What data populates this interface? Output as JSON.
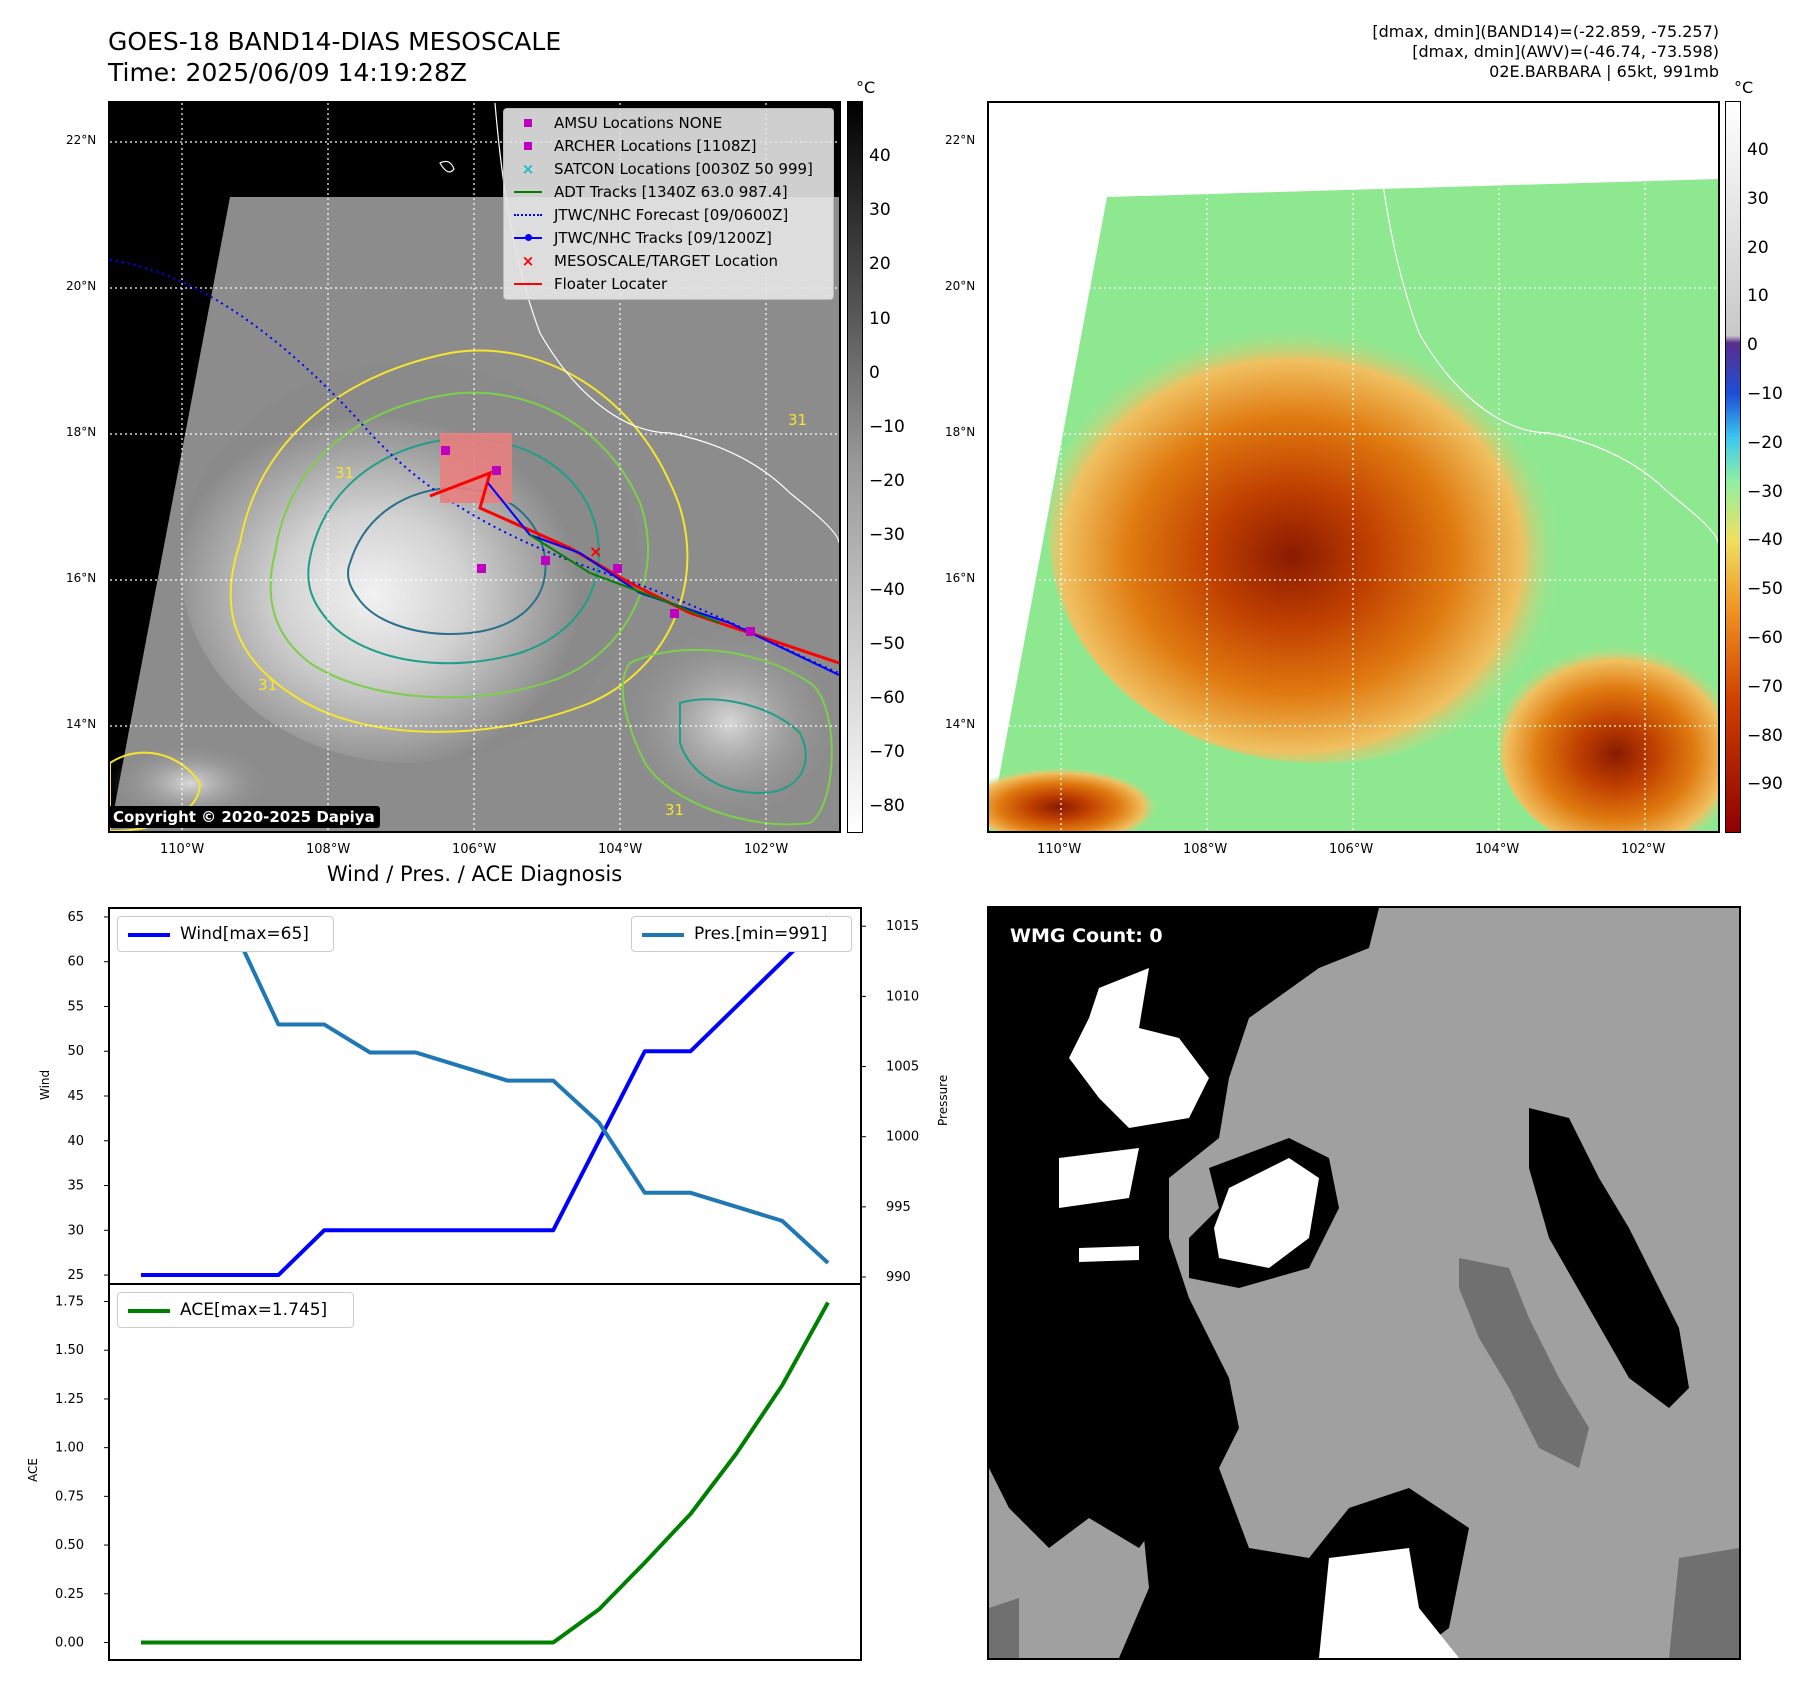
{
  "header": {
    "title_line1": "GOES-18 BAND14-DIAS MESOSCALE",
    "title_line2": "Time: 2025/06/09 14:19:28Z",
    "info_line1": "[dmax, dmin](BAND14)=(-22.859, -75.257)",
    "info_line2": "[dmax, dmin](AWV)=(-46.74, -73.598)",
    "info_line3": "02E.BARBARA | 65kt, 991mb"
  },
  "maps": {
    "lat_labels": [
      "22°N",
      "20°N",
      "18°N",
      "16°N",
      "14°N"
    ],
    "lon_labels": [
      "110°W",
      "108°W",
      "106°W",
      "104°W",
      "102°W"
    ],
    "unit": "°C",
    "colorbar_left_ticks": [
      "40",
      "30",
      "20",
      "10",
      "0",
      "−10",
      "−20",
      "−30",
      "−40",
      "−50",
      "−60",
      "−70",
      "−80"
    ],
    "colorbar_right_ticks": [
      "40",
      "30",
      "20",
      "10",
      "0",
      "−10",
      "−20",
      "−30",
      "−40",
      "−50",
      "−60",
      "−70",
      "−80",
      "−90"
    ],
    "contour_label": "31",
    "copyright": "Copyright © 2020-2025 Dapiya",
    "colors": {
      "contour_yellow": "#f5e52c",
      "contour_green": "#7dcf4a",
      "contour_teal": "#1f9e89",
      "contour_dark": "#2b6f8a",
      "track_red": "#ff0000",
      "track_blue": "#0000ff",
      "marker_magenta": "#c000c0"
    }
  },
  "legend": {
    "amsu": "AMSU Locations NONE",
    "archer": "ARCHER Locations [1108Z]",
    "satcon": "SATCON Locations [0030Z 50 999]",
    "adt": "ADT Tracks [1340Z 63.0 987.4]",
    "forecast": "JTWC/NHC Forecast [09/0600Z]",
    "tracks": "JTWC/NHC Tracks [09/1200Z]",
    "target": "MESOSCALE/TARGET Location",
    "floater": "Floater Locater"
  },
  "diagnosis_title": "Wind / Pres. / ACE Diagnosis",
  "wmg_label": "WMG Count: 0",
  "chart_data": [
    {
      "type": "line",
      "x": [
        0,
        1,
        2,
        3,
        4,
        5,
        6,
        7,
        8,
        9,
        10,
        11,
        12,
        13,
        14,
        15
      ],
      "series": [
        {
          "name": "Wind[max=65]",
          "axis": "left",
          "color": "#0000ff",
          "values": [
            25,
            25,
            25,
            25,
            30,
            30,
            30,
            30,
            30,
            30,
            40,
            50,
            50,
            55,
            60,
            65
          ]
        },
        {
          "name": "Pres.[min=991]",
          "axis": "right",
          "color": "#1f77b4",
          "values": [
            1015,
            1015,
            1015,
            1008,
            1008,
            1006,
            1006,
            1005,
            1004,
            1004,
            1001,
            996,
            996,
            995,
            994,
            991
          ]
        }
      ],
      "ylabel": "Wind",
      "y2label": "Pressure",
      "ylim": [
        24,
        66
      ],
      "y2lim": [
        989.5,
        1016.3
      ],
      "yticks": [
        25,
        30,
        35,
        40,
        45,
        50,
        55,
        60,
        65
      ],
      "y2ticks": [
        990,
        995,
        1000,
        1005,
        1010,
        1015
      ],
      "legend": [
        "top-left",
        "top-right"
      ]
    },
    {
      "type": "line",
      "x": [
        0,
        1,
        2,
        3,
        4,
        5,
        6,
        7,
        8,
        9,
        10,
        11,
        12,
        13,
        14,
        15
      ],
      "series": [
        {
          "name": "ACE[max=1.745]",
          "color": "#008000",
          "values": [
            0,
            0,
            0,
            0,
            0,
            0,
            0,
            0,
            0,
            0,
            0.17,
            0.41,
            0.66,
            0.97,
            1.32,
            1.745
          ]
        }
      ],
      "ylabel": "ACE",
      "ylim": [
        -0.09,
        1.84
      ],
      "yticks": [
        "0.00",
        "0.25",
        "0.50",
        "0.75",
        "1.00",
        "1.25",
        "1.50",
        "1.75"
      ],
      "legend": "top-left"
    }
  ]
}
